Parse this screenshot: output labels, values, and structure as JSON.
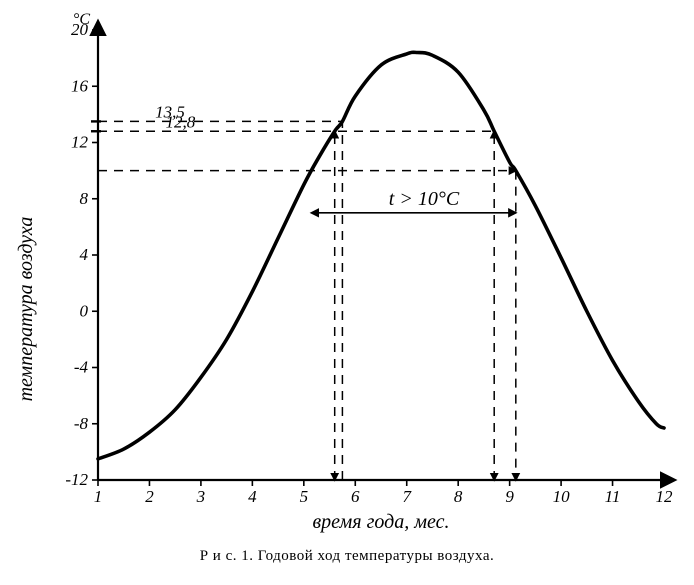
{
  "chart": {
    "type": "line",
    "title": "",
    "x": {
      "label": "время года, мес.",
      "min": 1,
      "max": 12,
      "ticks": [
        1,
        2,
        3,
        4,
        5,
        6,
        7,
        8,
        9,
        10,
        11,
        12
      ],
      "label_fontsize": 20,
      "label_fontstyle": "italic"
    },
    "y": {
      "label": "температура воздуха",
      "unit": "°C",
      "min": -12,
      "max": 20,
      "ticks": [
        -12,
        -8,
        -4,
        0,
        4,
        8,
        12,
        16,
        20
      ],
      "label_fontsize": 20,
      "label_fontstyle": "italic"
    },
    "series": [
      {
        "name": "air_temperature",
        "points": [
          [
            1.0,
            -10.5
          ],
          [
            1.5,
            -9.8
          ],
          [
            2.0,
            -8.6
          ],
          [
            2.5,
            -7.0
          ],
          [
            3.0,
            -4.7
          ],
          [
            3.5,
            -2.0
          ],
          [
            4.0,
            1.4
          ],
          [
            4.5,
            5.2
          ],
          [
            5.0,
            9.0
          ],
          [
            5.3,
            11.0
          ],
          [
            5.6,
            12.8
          ],
          [
            5.75,
            13.5
          ],
          [
            6.0,
            15.3
          ],
          [
            6.5,
            17.5
          ],
          [
            7.0,
            18.3
          ],
          [
            7.2,
            18.4
          ],
          [
            7.5,
            18.2
          ],
          [
            8.0,
            17.0
          ],
          [
            8.5,
            14.3
          ],
          [
            8.7,
            12.8
          ],
          [
            9.0,
            10.6
          ],
          [
            9.12,
            10.0
          ],
          [
            9.5,
            7.5
          ],
          [
            10.0,
            3.8
          ],
          [
            10.5,
            0.0
          ],
          [
            11.0,
            -3.5
          ],
          [
            11.5,
            -6.4
          ],
          [
            11.85,
            -8.0
          ],
          [
            12.0,
            -8.3
          ]
        ],
        "color": "#000000",
        "width": 3.6,
        "smooth": true
      }
    ],
    "ref_lines": {
      "h10": {
        "y": 10.0,
        "x_from": 1.0,
        "x_to": 9.12,
        "dash": true
      },
      "h128": {
        "y": 12.8,
        "x_from": 1.0,
        "x_to": 8.7,
        "dash": true,
        "label": "12,8"
      },
      "h135": {
        "y": 13.5,
        "x_from": 1.0,
        "x_to": 5.75,
        "dash": true,
        "label": "13,5"
      },
      "v_left_128": {
        "x": 5.6,
        "y_from": -12,
        "y_to": 12.8,
        "dash": true,
        "arrows": "both"
      },
      "v_left_135": {
        "x": 5.75,
        "y_from": -12,
        "y_to": 13.5,
        "dash": true
      },
      "v_right_128": {
        "x": 8.7,
        "y_from": -12,
        "y_to": 12.8,
        "dash": true,
        "arrows": "both"
      },
      "v_right_10": {
        "x": 9.12,
        "y_from": -12,
        "y_to": 10.0,
        "dash": true,
        "arrow": "down"
      }
    },
    "annotation": {
      "text": "t > 10°C",
      "y_at": 7.0,
      "x_from": 5.15,
      "x_to": 9.12,
      "fontsize": 20,
      "fontstyle": "italic"
    },
    "tick_marks": {
      "color": "#000000",
      "len": 6
    },
    "axis_color": "#000000",
    "axis_width": 2.2,
    "dash_pattern": "9 7",
    "background": "#ffffff"
  },
  "caption": {
    "prefix": "Р и с. 1.",
    "text": "Годовой ход температуры воздуха."
  },
  "colors": {
    "ink": "#000000"
  }
}
